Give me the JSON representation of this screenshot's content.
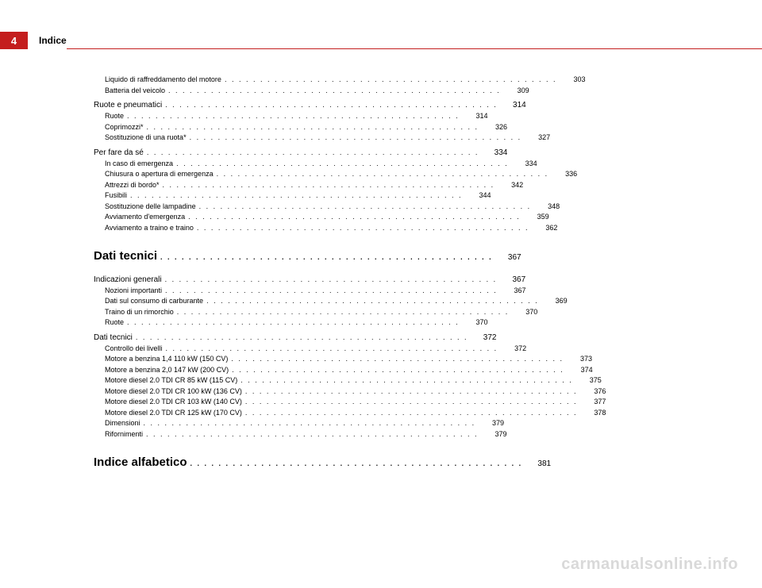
{
  "header": {
    "page_number": "4",
    "section": "Indice",
    "bar_color": "#c41e1e"
  },
  "toc": [
    {
      "level": "sub",
      "label": "Liquido di raffreddamento del motore",
      "page": "303"
    },
    {
      "level": "sub",
      "label": "Batteria del veicolo",
      "page": "309"
    },
    {
      "level": "main",
      "label": "Ruote e pneumatici",
      "page": "314"
    },
    {
      "level": "sub",
      "label": "Ruote",
      "page": "314"
    },
    {
      "level": "sub",
      "label": "Coprimozzi*",
      "page": "326"
    },
    {
      "level": "sub",
      "label": "Sostituzione di una ruota*",
      "page": "327"
    },
    {
      "level": "main",
      "label": "Per fare da sé",
      "page": "334"
    },
    {
      "level": "sub",
      "label": "In caso di emergenza",
      "page": "334"
    },
    {
      "level": "sub",
      "label": "Chiusura o apertura di emergenza",
      "page": "336"
    },
    {
      "level": "sub",
      "label": "Attrezzi di bordo*",
      "page": "342"
    },
    {
      "level": "sub",
      "label": "Fusibili",
      "page": "344"
    },
    {
      "level": "sub",
      "label": "Sostituzione delle lampadine",
      "page": "348"
    },
    {
      "level": "sub",
      "label": "Avviamento d'emergenza",
      "page": "359"
    },
    {
      "level": "sub",
      "label": "Avviamento a traino e traino",
      "page": "362"
    },
    {
      "level": "heading",
      "label": "Dati tecnici",
      "page": "367"
    },
    {
      "level": "main",
      "label": "Indicazioni generali",
      "page": "367"
    },
    {
      "level": "sub",
      "label": "Nozioni importanti",
      "page": "367"
    },
    {
      "level": "sub",
      "label": "Dati sul consumo di carburante",
      "page": "369"
    },
    {
      "level": "sub",
      "label": "Traino di un rimorchio",
      "page": "370"
    },
    {
      "level": "sub",
      "label": "Ruote",
      "page": "370"
    },
    {
      "level": "main",
      "label": "Dati tecnici",
      "page": "372"
    },
    {
      "level": "sub",
      "label": "Controllo dei livelli",
      "page": "372"
    },
    {
      "level": "sub",
      "label": "Motore a benzina 1,4 110 kW (150 CV)",
      "page": "373"
    },
    {
      "level": "sub",
      "label": "Motore a benzina 2,0 147 kW (200 CV)",
      "page": "374"
    },
    {
      "level": "sub",
      "label": "Motore diesel 2.0 TDI CR 85 kW (115 CV)",
      "page": "375"
    },
    {
      "level": "sub",
      "label": "Motore diesel 2.0 TDI CR 100 kW (136 CV)",
      "page": "376"
    },
    {
      "level": "sub",
      "label": "Motore diesel 2.0 TDI CR 103 kW (140 CV)",
      "page": "377"
    },
    {
      "level": "sub",
      "label": "Motore diesel 2.0 TDI CR 125 kW (170 CV)",
      "page": "378"
    },
    {
      "level": "sub",
      "label": "Dimensioni",
      "page": "379"
    },
    {
      "level": "sub",
      "label": "Rifornimenti",
      "page": "379"
    },
    {
      "level": "heading",
      "label": "Indice alfabetico",
      "page": "381"
    }
  ],
  "watermark": "carmanualsonline.info"
}
